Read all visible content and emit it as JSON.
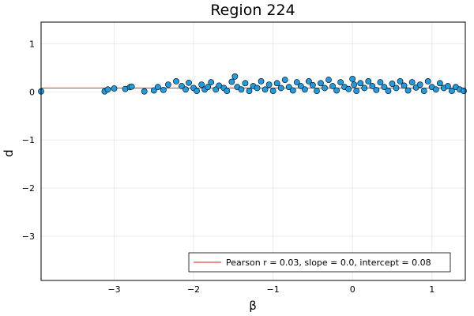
{
  "chart_data": {
    "type": "scatter",
    "title": "Region 224",
    "xlabel": "β",
    "ylabel": "d",
    "xlim": [
      -3.92,
      1.42
    ],
    "ylim": [
      -3.92,
      1.45
    ],
    "xticks": [
      -3,
      -2,
      -1,
      0,
      1
    ],
    "xtick_labels": [
      "−3",
      "−2",
      "−1",
      "0",
      "1"
    ],
    "yticks": [
      -3,
      -2,
      -1,
      0,
      1
    ],
    "ytick_labels": [
      "−3",
      "−2",
      "−1",
      "0",
      "1"
    ],
    "grid": true,
    "legend_position": "bottom-right",
    "colors": {
      "points": "#1f9be0",
      "fit_line": "#e8463b"
    },
    "fit": {
      "label": "Pearson r = 0.03, slope = 0.0, intercept = 0.08",
      "slope": 0.0,
      "intercept": 0.08
    },
    "series": [
      {
        "points": [
          [
            -3.92,
            0.01
          ],
          [
            -3.12,
            0.01
          ],
          [
            -3.08,
            0.05
          ],
          [
            -3.0,
            0.07
          ],
          [
            -2.86,
            0.06
          ],
          [
            -2.8,
            0.1
          ],
          [
            -2.78,
            0.11
          ],
          [
            -2.62,
            0.01
          ],
          [
            -2.5,
            0.03
          ],
          [
            -2.45,
            0.1
          ],
          [
            -2.38,
            0.04
          ],
          [
            -2.32,
            0.15
          ],
          [
            -2.22,
            0.22
          ],
          [
            -2.15,
            0.12
          ],
          [
            -2.1,
            0.05
          ],
          [
            -2.06,
            0.19
          ],
          [
            -2.0,
            0.08
          ],
          [
            -1.96,
            0.02
          ],
          [
            -1.9,
            0.15
          ],
          [
            -1.86,
            0.05
          ],
          [
            -1.82,
            0.1
          ],
          [
            -1.78,
            0.2
          ],
          [
            -1.72,
            0.05
          ],
          [
            -1.68,
            0.13
          ],
          [
            -1.62,
            0.08
          ],
          [
            -1.58,
            0.02
          ],
          [
            -1.52,
            0.21
          ],
          [
            -1.48,
            0.32
          ],
          [
            -1.45,
            0.1
          ],
          [
            -1.4,
            0.05
          ],
          [
            -1.35,
            0.18
          ],
          [
            -1.3,
            0.02
          ],
          [
            -1.25,
            0.12
          ],
          [
            -1.2,
            0.08
          ],
          [
            -1.15,
            0.22
          ],
          [
            -1.1,
            0.05
          ],
          [
            -1.05,
            0.15
          ],
          [
            -1.0,
            0.02
          ],
          [
            -0.95,
            0.18
          ],
          [
            -0.9,
            0.08
          ],
          [
            -0.85,
            0.25
          ],
          [
            -0.8,
            0.1
          ],
          [
            -0.75,
            0.03
          ],
          [
            -0.7,
            0.2
          ],
          [
            -0.65,
            0.12
          ],
          [
            -0.6,
            0.05
          ],
          [
            -0.55,
            0.22
          ],
          [
            -0.5,
            0.14
          ],
          [
            -0.45,
            0.02
          ],
          [
            -0.4,
            0.18
          ],
          [
            -0.35,
            0.08
          ],
          [
            -0.3,
            0.25
          ],
          [
            -0.25,
            0.12
          ],
          [
            -0.2,
            0.03
          ],
          [
            -0.15,
            0.2
          ],
          [
            -0.1,
            0.1
          ],
          [
            -0.05,
            0.06
          ],
          [
            0.0,
            0.27
          ],
          [
            0.02,
            0.15
          ],
          [
            0.05,
            0.02
          ],
          [
            0.1,
            0.18
          ],
          [
            0.15,
            0.08
          ],
          [
            0.2,
            0.22
          ],
          [
            0.25,
            0.12
          ],
          [
            0.3,
            0.04
          ],
          [
            0.35,
            0.2
          ],
          [
            0.4,
            0.1
          ],
          [
            0.45,
            0.02
          ],
          [
            0.5,
            0.17
          ],
          [
            0.55,
            0.08
          ],
          [
            0.6,
            0.22
          ],
          [
            0.65,
            0.13
          ],
          [
            0.7,
            0.03
          ],
          [
            0.75,
            0.2
          ],
          [
            0.8,
            0.09
          ],
          [
            0.85,
            0.15
          ],
          [
            0.9,
            0.02
          ],
          [
            0.95,
            0.22
          ],
          [
            1.0,
            0.1
          ],
          [
            1.05,
            0.05
          ],
          [
            1.1,
            0.18
          ],
          [
            1.15,
            0.08
          ],
          [
            1.2,
            0.12
          ],
          [
            1.25,
            0.02
          ],
          [
            1.3,
            0.1
          ],
          [
            1.35,
            0.05
          ],
          [
            1.4,
            0.02
          ]
        ]
      }
    ]
  }
}
